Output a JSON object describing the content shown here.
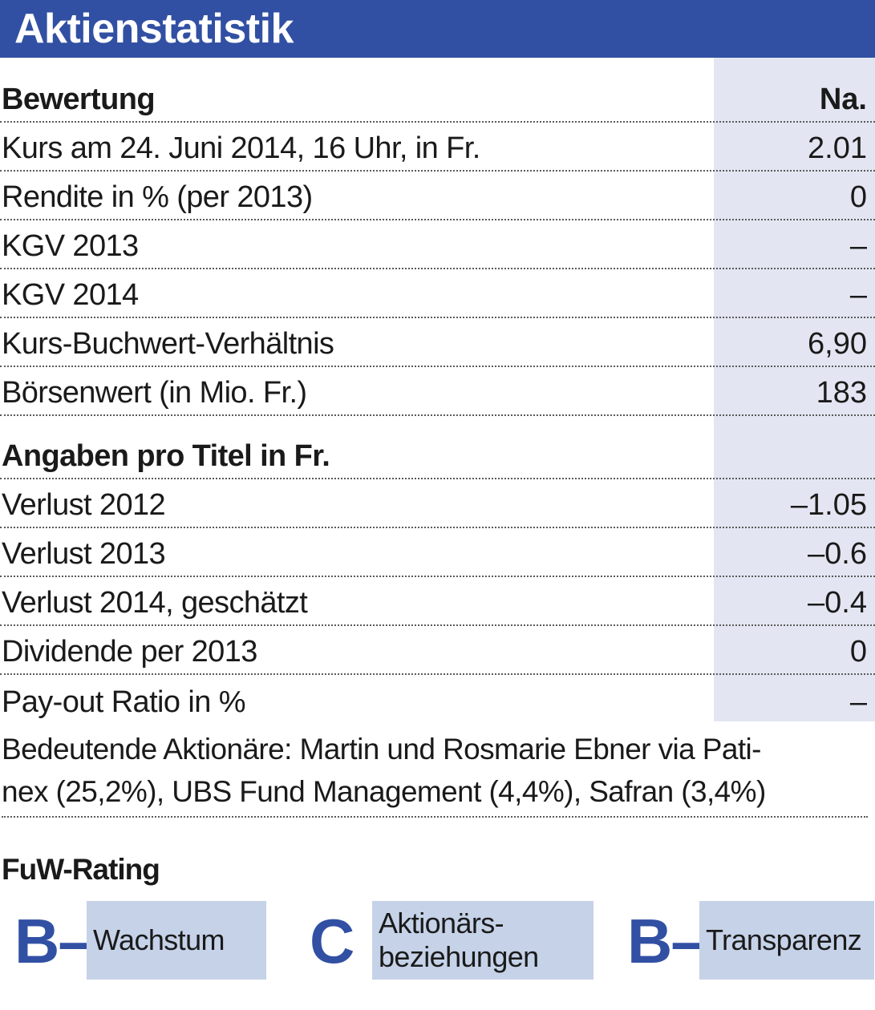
{
  "title": "Aktienstatistik",
  "rows": [
    {
      "label": "Bewertung",
      "value": "Na.",
      "bold": true
    },
    {
      "label": "Kurs am 24. Juni 2014, 16 Uhr, in Fr.",
      "value": "2.01"
    },
    {
      "label": "Rendite in % (per 2013)",
      "value": "0"
    },
    {
      "label": "KGV 2013",
      "value": "–"
    },
    {
      "label": "KGV 2014",
      "value": "–"
    },
    {
      "label": "Kurs-Buchwert-Verhältnis",
      "value": "6,90"
    },
    {
      "label": "Börsenwert (in Mio. Fr.)",
      "value": "183"
    },
    {
      "label": "Angaben pro Titel in Fr.",
      "value": "",
      "bold": true
    },
    {
      "label": "Verlust 2012",
      "value": "–1.05"
    },
    {
      "label": "Verlust 2013",
      "value": "–0.6"
    },
    {
      "label": "Verlust 2014, geschätzt",
      "value": "–0.4"
    },
    {
      "label": "Dividende per 2013",
      "value": "0"
    },
    {
      "label": "Pay-out Ratio in %",
      "value": "–"
    }
  ],
  "shareholders": {
    "line1": "Bedeutende Aktionäre: Martin und Rosmarie Ebner via Pati-",
    "line2": "nex (25,2%), UBS Fund Management (4,4%), Safran (3,4%)"
  },
  "rating": {
    "title": "FuW-Rating",
    "items": [
      {
        "grade": "B–",
        "label_line1": "Wachstum",
        "label_line2": ""
      },
      {
        "grade": "C",
        "label_line1": "Aktionärs-",
        "label_line2": "beziehungen"
      },
      {
        "grade": "B–",
        "label_line1": "Transparenz",
        "label_line2": ""
      }
    ]
  },
  "colors": {
    "brand_blue": "#3150a3",
    "value_column": "#e3e6f2",
    "rating_box": "#c5d2e8"
  }
}
